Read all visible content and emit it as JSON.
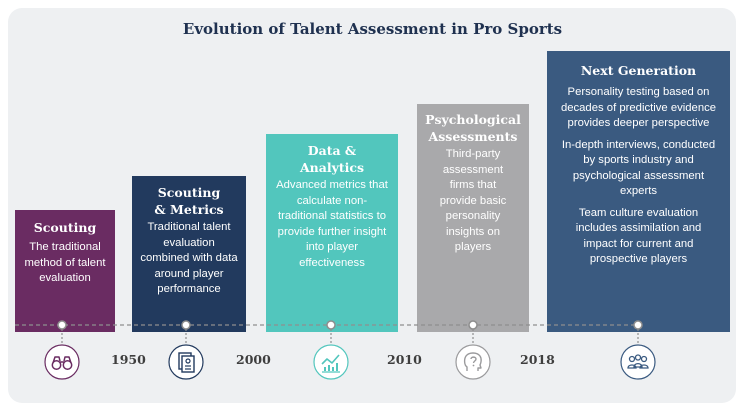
{
  "title": "Evolution of Talent Assessment in Pro Sports",
  "stages": [
    {
      "heading": "Scouting",
      "text": "The traditional method of talent evaluation",
      "color": "#6a2c62",
      "icon": "binoculars-icon"
    },
    {
      "heading": "Scouting & Metrics",
      "text": "Traditional talent evaluation combined with data around player performance",
      "color": "#223a5e",
      "icon": "document-report-icon"
    },
    {
      "heading": "Data & Analytics",
      "text": "Advanced metrics that calculate non-traditional statistics to provide further insight into player effectiveness",
      "color": "#52c6bd",
      "icon": "chart-analytics-icon"
    },
    {
      "heading": "Psychological Assessments",
      "text": "Third-party assessment firms that provide basic personality insights on players",
      "color": "#a9a9ab",
      "icon": "head-question-icon"
    },
    {
      "heading": "Next Generation",
      "paragraphs": [
        "Personality testing based on decades of predictive evidence provides deeper perspective",
        "In-depth interviews, conducted by sports industry and psychological assessment experts",
        "Team culture evaluation includes assimilation and impact for current and prospective players"
      ],
      "color": "#3a5a80",
      "icon": "team-group-icon"
    }
  ],
  "years": [
    "1950",
    "2000",
    "2010",
    "2018"
  ]
}
